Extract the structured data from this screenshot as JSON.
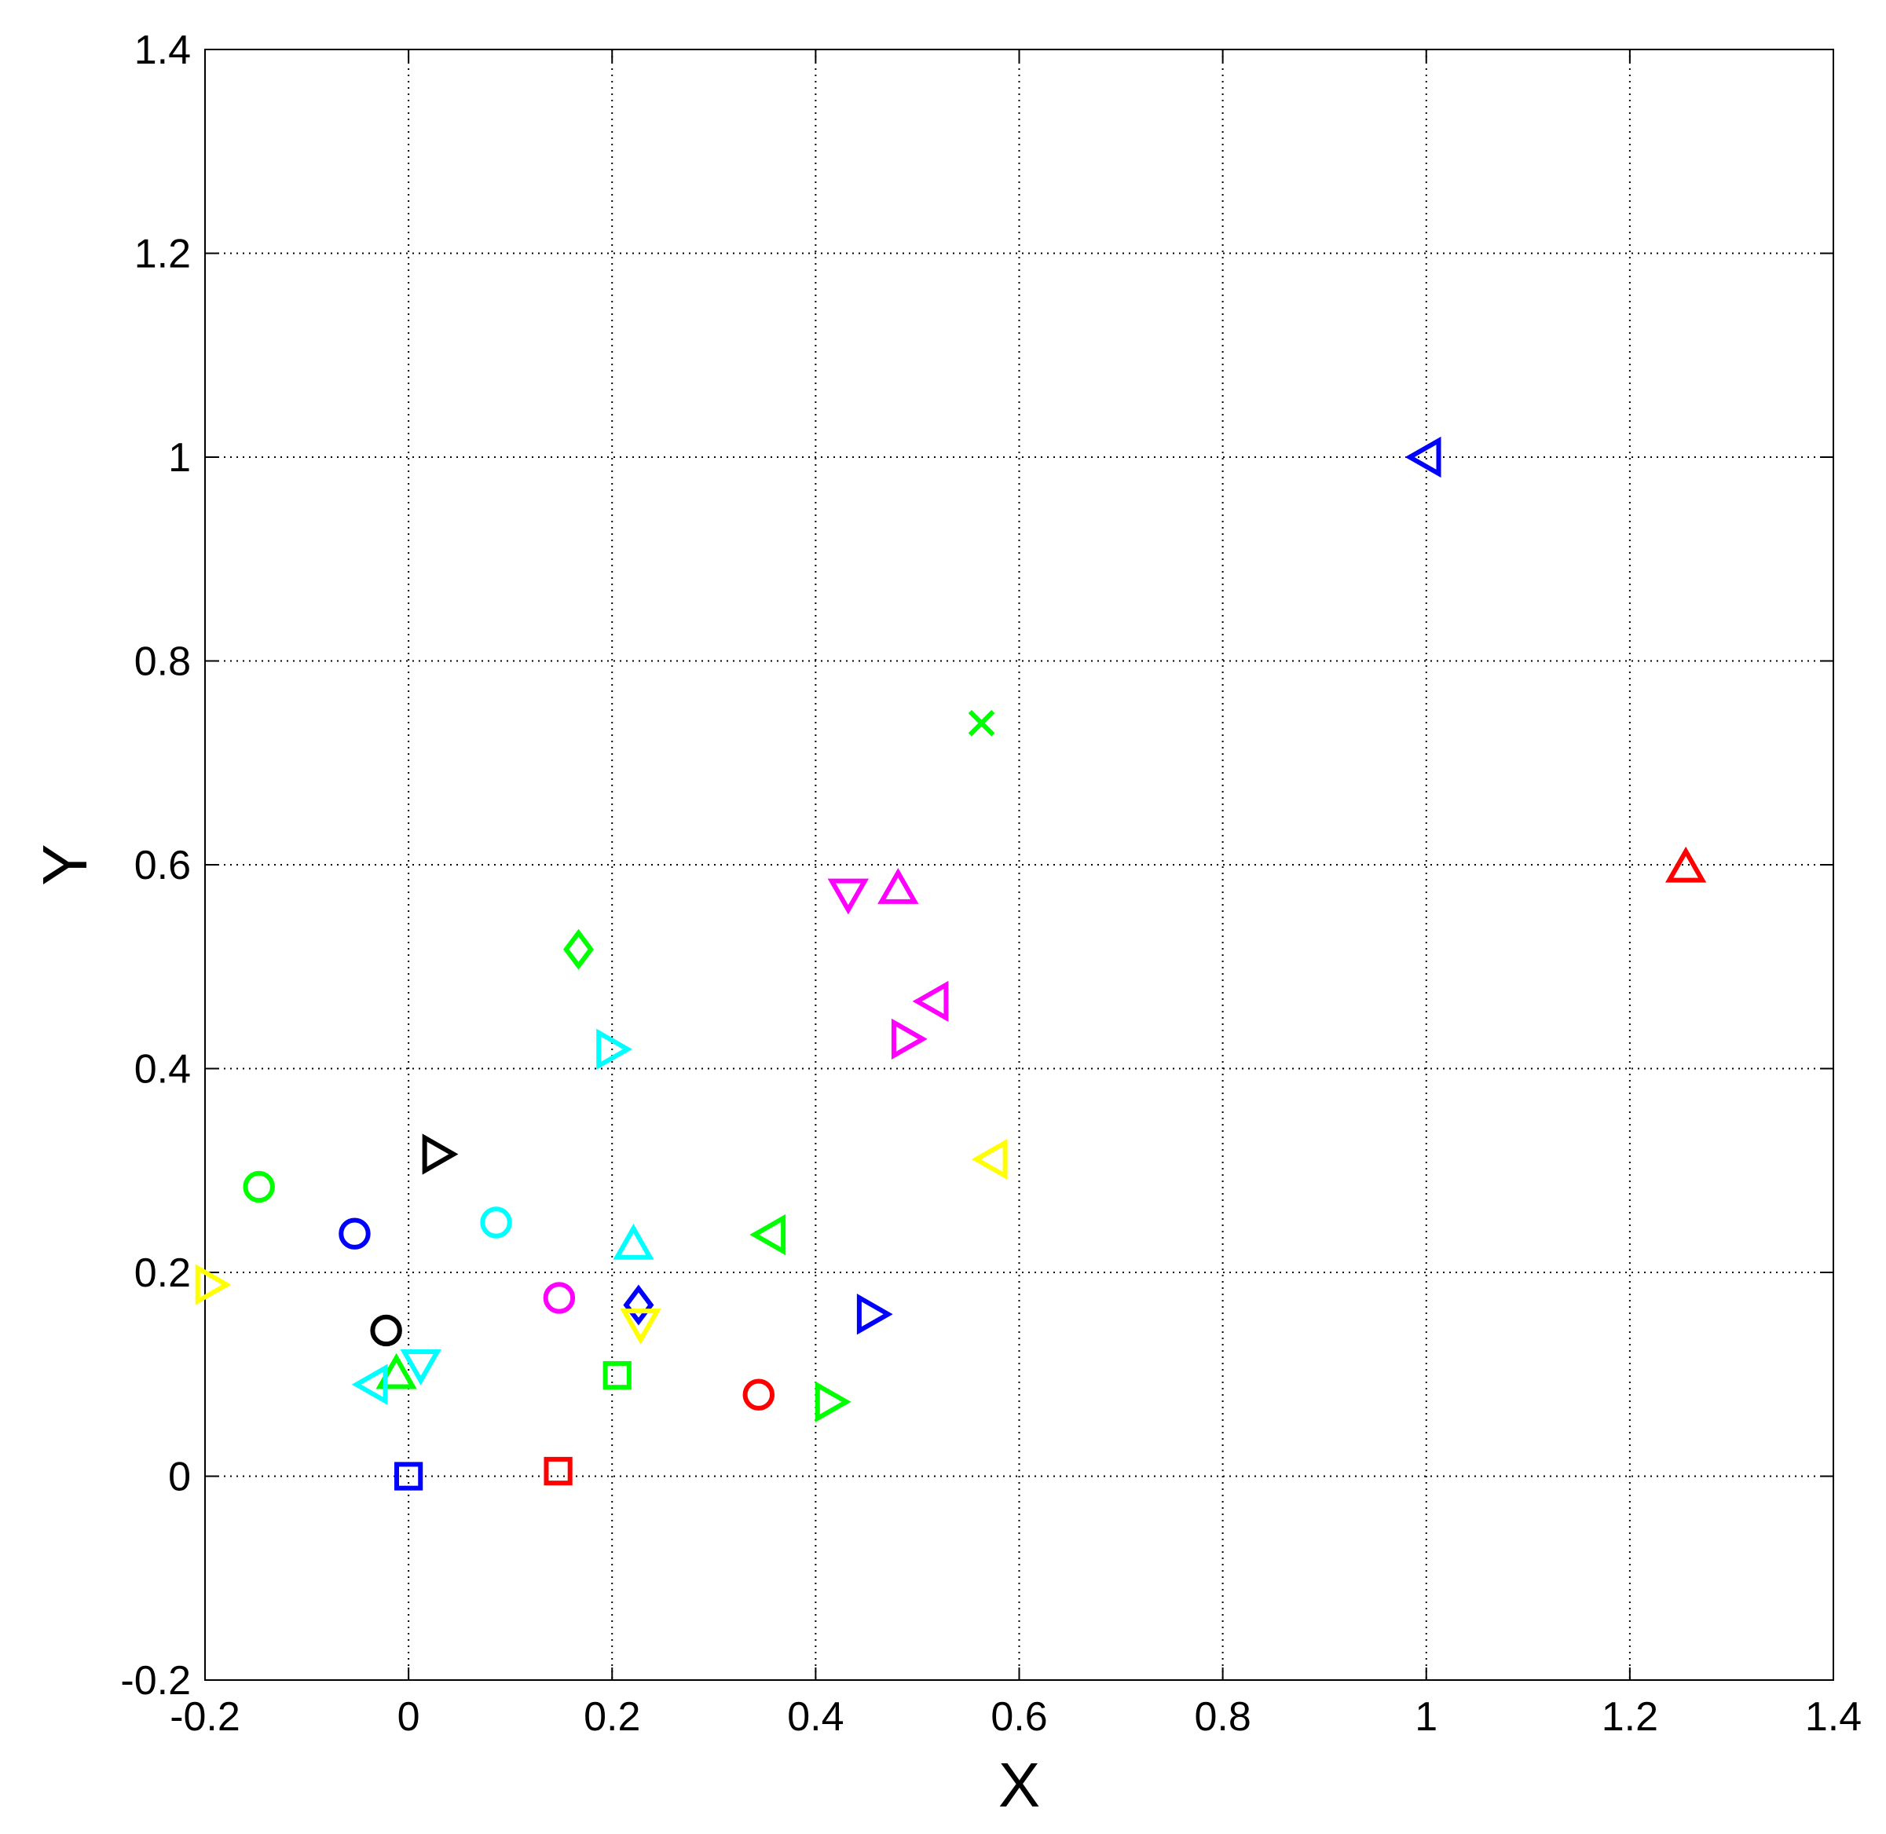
{
  "chart_data": {
    "type": "scatter",
    "title": "",
    "xlabel": "X",
    "ylabel": "Y",
    "xlim": [
      -0.2,
      1.4
    ],
    "ylim": [
      -0.2,
      1.4
    ],
    "xticks": [
      "-0.2",
      "0",
      "0.2",
      "0.4",
      "0.6",
      "0.8",
      "1",
      "1.2",
      "1.4"
    ],
    "yticks": [
      "-0.2",
      "0",
      "0.2",
      "0.4",
      "0.6",
      "0.8",
      "1",
      "1.2",
      "1.4"
    ],
    "xtick_values": [
      -0.2,
      0,
      0.2,
      0.4,
      0.6,
      0.8,
      1.0,
      1.2,
      1.4
    ],
    "ytick_values": [
      -0.2,
      0,
      0.2,
      0.4,
      0.6,
      0.8,
      1.0,
      1.2,
      1.4
    ],
    "grid": true,
    "grid_style": "dotted",
    "legend": "none",
    "points": [
      {
        "x": 1.0,
        "y": 1.0,
        "marker": "triangle-left",
        "color": "#0000ff"
      },
      {
        "x": 1.255,
        "y": 0.597,
        "marker": "triangle-up",
        "color": "#ff0000"
      },
      {
        "x": 0.563,
        "y": 0.739,
        "marker": "x",
        "color": "#00ff00"
      },
      {
        "x": 0.432,
        "y": 0.572,
        "marker": "triangle-down",
        "color": "#ff00ff"
      },
      {
        "x": 0.481,
        "y": 0.576,
        "marker": "triangle-up",
        "color": "#ff00ff"
      },
      {
        "x": 0.167,
        "y": 0.517,
        "marker": "diamond",
        "color": "#00ff00"
      },
      {
        "x": 0.516,
        "y": 0.466,
        "marker": "triangle-left",
        "color": "#ff00ff"
      },
      {
        "x": 0.489,
        "y": 0.429,
        "marker": "triangle-right",
        "color": "#ff00ff"
      },
      {
        "x": 0.199,
        "y": 0.419,
        "marker": "triangle-right",
        "color": "#00ffff"
      },
      {
        "x": 0.028,
        "y": 0.316,
        "marker": "triangle-right",
        "color": "#000000"
      },
      {
        "x": 0.574,
        "y": 0.311,
        "marker": "triangle-left",
        "color": "#ffff00"
      },
      {
        "x": -0.147,
        "y": 0.284,
        "marker": "circle",
        "color": "#00ff00"
      },
      {
        "x": 0.086,
        "y": 0.249,
        "marker": "circle",
        "color": "#00ffff"
      },
      {
        "x": -0.053,
        "y": 0.238,
        "marker": "circle",
        "color": "#0000ff"
      },
      {
        "x": 0.356,
        "y": 0.237,
        "marker": "triangle-left",
        "color": "#00ff00"
      },
      {
        "x": 0.221,
        "y": 0.227,
        "marker": "triangle-up",
        "color": "#00ffff"
      },
      {
        "x": -0.195,
        "y": 0.188,
        "marker": "triangle-right",
        "color": "#ffff00"
      },
      {
        "x": 0.148,
        "y": 0.175,
        "marker": "circle",
        "color": "#ff00ff"
      },
      {
        "x": 0.226,
        "y": 0.168,
        "marker": "diamond",
        "color": "#0000ff"
      },
      {
        "x": 0.455,
        "y": 0.159,
        "marker": "triangle-right",
        "color": "#0000ff"
      },
      {
        "x": 0.228,
        "y": 0.15,
        "marker": "triangle-down",
        "color": "#ffff00"
      },
      {
        "x": -0.022,
        "y": 0.143,
        "marker": "circle",
        "color": "#000000"
      },
      {
        "x": 0.012,
        "y": 0.11,
        "marker": "triangle-down",
        "color": "#00ffff"
      },
      {
        "x": -0.012,
        "y": 0.1,
        "marker": "triangle-up",
        "color": "#00ff00"
      },
      {
        "x": 0.205,
        "y": 0.099,
        "marker": "square",
        "color": "#00ff00"
      },
      {
        "x": -0.035,
        "y": 0.09,
        "marker": "triangle-left",
        "color": "#00ffff"
      },
      {
        "x": 0.344,
        "y": 0.08,
        "marker": "circle",
        "color": "#ff0000"
      },
      {
        "x": 0.414,
        "y": 0.073,
        "marker": "triangle-right",
        "color": "#00ff00"
      },
      {
        "x": 0.147,
        "y": 0.005,
        "marker": "square",
        "color": "#ff0000"
      },
      {
        "x": 0.0,
        "y": 0.0,
        "marker": "square",
        "color": "#0000ff"
      }
    ]
  }
}
